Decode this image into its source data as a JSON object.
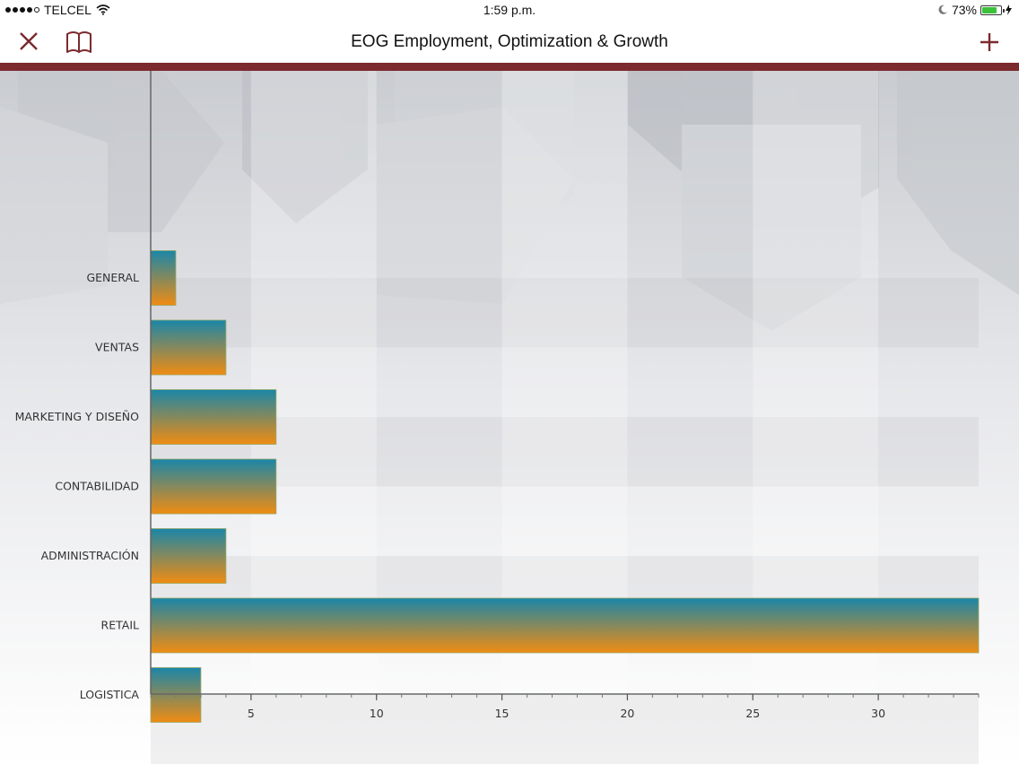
{
  "status_bar": {
    "carrier": "TELCEL",
    "time": "1:59 p.m.",
    "battery": "73%",
    "battery_level": 0.73
  },
  "nav": {
    "title": "EOG Employment, Optimization & Growth",
    "close_icon": "close-icon",
    "book_icon": "book-icon",
    "add_icon": "plus-icon"
  },
  "colors": {
    "accent": "#7b2a2e",
    "bar_top": "#1a86a8",
    "bar_bottom": "#f08c12"
  },
  "chart_data": {
    "type": "bar",
    "orientation": "horizontal",
    "categories": [
      "GENERAL",
      "VENTAS",
      "MARKETING Y DISEÑO",
      "CONTABILIDAD",
      "ADMINISTRACIÓN",
      "RETAIL",
      "LOGISTICA"
    ],
    "values": [
      2,
      4,
      6,
      6,
      4,
      34,
      3
    ],
    "xticks": [
      "5",
      "10",
      "15",
      "20",
      "25",
      "30"
    ],
    "xlim": [
      1,
      34
    ],
    "title": "",
    "xlabel": "",
    "ylabel": "",
    "grid": true
  }
}
